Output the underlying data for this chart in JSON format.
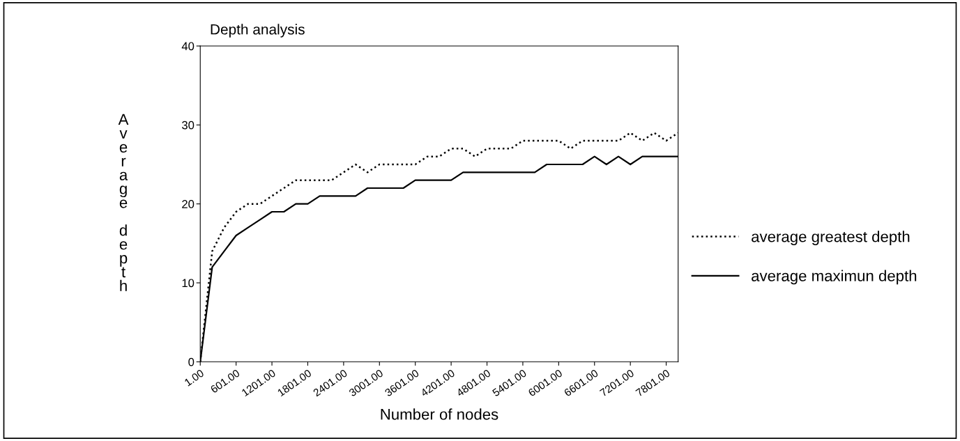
{
  "chart_data": {
    "type": "line",
    "title": "Depth analysis",
    "xlabel": "Number of nodes",
    "ylabel": "Average depth",
    "x": [
      1,
      201,
      401,
      601,
      801,
      1001,
      1201,
      1401,
      1601,
      1801,
      2001,
      2201,
      2401,
      2601,
      2801,
      3001,
      3201,
      3401,
      3601,
      3801,
      4001,
      4201,
      4401,
      4601,
      4801,
      5001,
      5201,
      5401,
      5601,
      5801,
      6001,
      6201,
      6401,
      6601,
      6801,
      7001,
      7201,
      7401,
      7601,
      7801,
      8001
    ],
    "series": [
      {
        "name": "average greatest depth",
        "color": "#000000",
        "line_style": "dotted",
        "values": [
          0,
          14,
          17,
          19,
          20,
          20,
          21,
          22,
          23,
          23,
          23,
          23,
          24,
          25,
          24,
          25,
          25,
          25,
          25,
          26,
          26,
          27,
          27,
          26,
          27,
          27,
          27,
          28,
          28,
          28,
          28,
          27,
          28,
          28,
          28,
          28,
          29,
          28,
          29,
          28,
          29
        ]
      },
      {
        "name": "average maximun depth",
        "color": "#000000",
        "line_style": "solid",
        "values": [
          0,
          12,
          14,
          16,
          17,
          18,
          19,
          19,
          20,
          20,
          21,
          21,
          21,
          21,
          22,
          22,
          22,
          22,
          23,
          23,
          23,
          23,
          24,
          24,
          24,
          24,
          24,
          24,
          24,
          25,
          25,
          25,
          25,
          26,
          25,
          26,
          25,
          26,
          26,
          26,
          26
        ]
      }
    ],
    "xlim": [
      1,
      8001
    ],
    "xticks": [
      {
        "value": 1,
        "label": "1.00"
      },
      {
        "value": 601,
        "label": "601.00"
      },
      {
        "value": 1201,
        "label": "1201.00"
      },
      {
        "value": 1801,
        "label": "1801.00"
      },
      {
        "value": 2401,
        "label": "2401.00"
      },
      {
        "value": 3001,
        "label": "3001.00"
      },
      {
        "value": 3601,
        "label": "3601.00"
      },
      {
        "value": 4201,
        "label": "4201.00"
      },
      {
        "value": 4801,
        "label": "4801.00"
      },
      {
        "value": 5401,
        "label": "5401.00"
      },
      {
        "value": 6001,
        "label": "6001.00"
      },
      {
        "value": 6601,
        "label": "6601.00"
      },
      {
        "value": 7201,
        "label": "7201.00"
      },
      {
        "value": 7801,
        "label": "7801.00"
      }
    ],
    "ylim": [
      0,
      40
    ],
    "yticks": [
      0,
      10,
      20,
      30,
      40
    ],
    "grid": false,
    "legend": "right",
    "marker": "none"
  }
}
